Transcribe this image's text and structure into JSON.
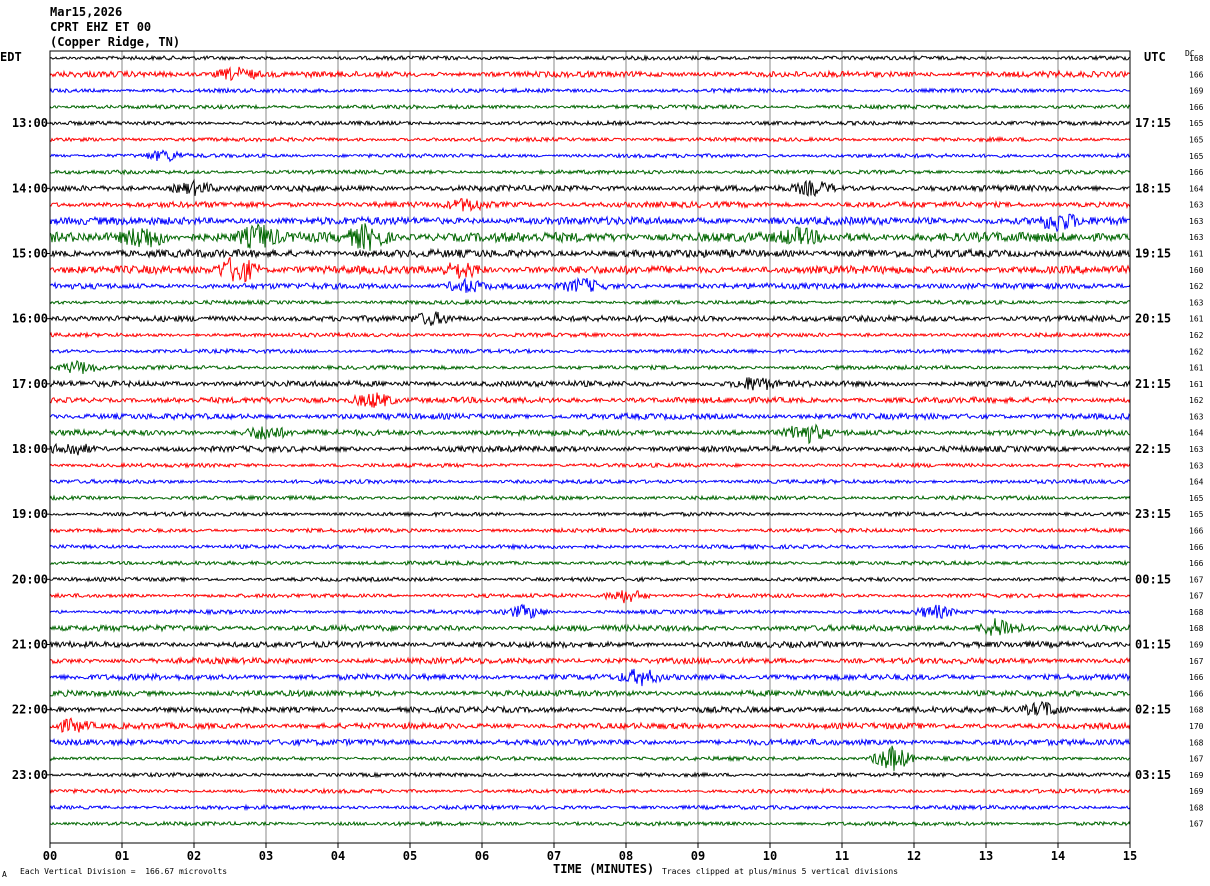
{
  "header": {
    "date": "Mar15,2026",
    "station": "CPRT EHZ ET 00",
    "location": "(Copper Ridge, TN)"
  },
  "left_tz": "EDT",
  "right_tz": "UTC",
  "dc_label": "DC",
  "footer": {
    "scale_note": "Each Vertical Division =  166.67 microvolts",
    "clip_note": "Traces clipped at plus/minus 5 vertical divisions",
    "corner_mark": "A"
  },
  "colors": {
    "cycle": [
      "#000000",
      "#ff0000",
      "#0000ff",
      "#006600"
    ],
    "grid": "#888888",
    "frame": "#000000"
  },
  "chart_data": {
    "type": "line",
    "title": "Mar15,2026",
    "xlabel": "TIME (MINUTES)",
    "x_ticks": [
      "00",
      "01",
      "02",
      "03",
      "04",
      "05",
      "06",
      "07",
      "08",
      "09",
      "10",
      "11",
      "12",
      "13",
      "14",
      "15"
    ],
    "xlim": [
      0,
      15
    ],
    "left_time_labels": [
      "13:00",
      "14:00",
      "15:00",
      "16:00",
      "17:00",
      "18:00",
      "19:00",
      "20:00",
      "21:00",
      "22:00",
      "23:00"
    ],
    "right_time_labels": [
      "17:15",
      "18:15",
      "19:15",
      "20:15",
      "21:15",
      "22:15",
      "23:15",
      "00:15",
      "01:15",
      "02:15",
      "03:15"
    ],
    "dc_offsets": [
      "168",
      "166",
      "169",
      "166",
      "165",
      "165",
      "165",
      "166",
      "164",
      "163",
      "163",
      "163",
      "161",
      "160",
      "162",
      "163",
      "161",
      "162",
      "162",
      "161",
      "161",
      "162",
      "163",
      "164",
      "163",
      "163",
      "164",
      "165",
      "165",
      "166",
      "166",
      "166",
      "167",
      "167",
      "168",
      "168",
      "169",
      "167",
      "166",
      "166",
      "168",
      "170",
      "168",
      "167",
      "169",
      "169",
      "168",
      "167"
    ],
    "amplitudes": [
      2,
      3,
      2,
      2,
      2,
      2,
      2,
      2,
      3,
      3,
      4,
      5,
      4,
      4,
      3,
      2,
      3,
      2,
      2,
      2,
      3,
      3,
      3,
      3,
      3,
      2,
      2,
      2,
      2,
      2,
      2,
      2,
      2,
      2,
      2,
      3,
      3,
      3,
      3,
      3,
      3,
      3,
      3,
      2,
      2,
      2,
      2,
      2
    ],
    "events": [
      {
        "row": 1,
        "minute": 2.6,
        "amp": 5
      },
      {
        "row": 6,
        "minute": 1.6,
        "amp": 5
      },
      {
        "row": 8,
        "minute": 2.0,
        "amp": 5
      },
      {
        "row": 8,
        "minute": 10.6,
        "amp": 6
      },
      {
        "row": 9,
        "minute": 5.8,
        "amp": 5
      },
      {
        "row": 10,
        "minute": 14.0,
        "amp": 8
      },
      {
        "row": 11,
        "minute": 1.3,
        "amp": 9
      },
      {
        "row": 11,
        "minute": 2.9,
        "amp": 10
      },
      {
        "row": 11,
        "minute": 4.4,
        "amp": 10
      },
      {
        "row": 11,
        "minute": 10.4,
        "amp": 6
      },
      {
        "row": 13,
        "minute": 2.6,
        "amp": 12
      },
      {
        "row": 13,
        "minute": 5.7,
        "amp": 6
      },
      {
        "row": 14,
        "minute": 7.4,
        "amp": 6
      },
      {
        "row": 14,
        "minute": 5.8,
        "amp": 5
      },
      {
        "row": 16,
        "minute": 5.3,
        "amp": 5
      },
      {
        "row": 19,
        "minute": 0.4,
        "amp": 6
      },
      {
        "row": 20,
        "minute": 9.8,
        "amp": 6
      },
      {
        "row": 21,
        "minute": 4.5,
        "amp": 6
      },
      {
        "row": 23,
        "minute": 10.5,
        "amp": 9
      },
      {
        "row": 23,
        "minute": 3.0,
        "amp": 6
      },
      {
        "row": 24,
        "minute": 0.3,
        "amp": 5
      },
      {
        "row": 33,
        "minute": 8.0,
        "amp": 6
      },
      {
        "row": 34,
        "minute": 12.3,
        "amp": 6
      },
      {
        "row": 35,
        "minute": 13.2,
        "amp": 9
      },
      {
        "row": 34,
        "minute": 6.6,
        "amp": 6
      },
      {
        "row": 38,
        "minute": 8.2,
        "amp": 7
      },
      {
        "row": 41,
        "minute": 0.3,
        "amp": 5
      },
      {
        "row": 40,
        "minute": 13.8,
        "amp": 6
      },
      {
        "row": 43,
        "minute": 11.7,
        "amp": 12
      }
    ]
  }
}
